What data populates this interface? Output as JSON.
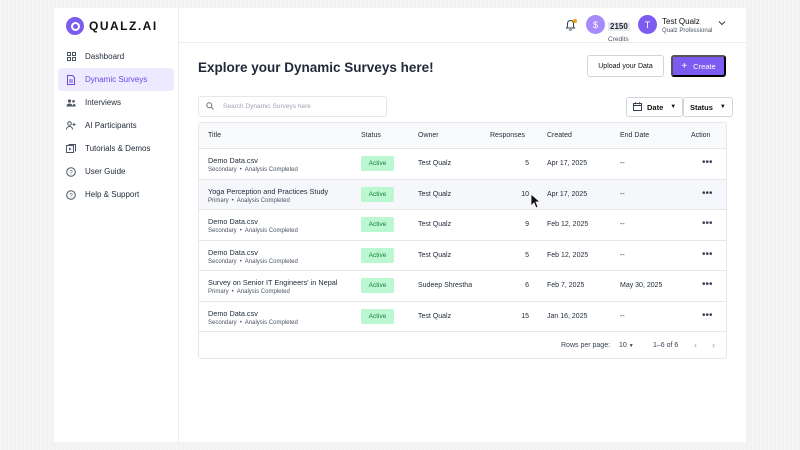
{
  "brand": {
    "name": "QUALZ.AI"
  },
  "sidebar": {
    "items": [
      {
        "label": "Dashboard",
        "icon": "grid-icon"
      },
      {
        "label": "Dynamic Surveys",
        "icon": "document-icon",
        "active": true
      },
      {
        "label": "Interviews",
        "icon": "users-icon"
      },
      {
        "label": "AI Participants",
        "icon": "user-plus-icon"
      },
      {
        "label": "Tutorials & Demos",
        "icon": "video-icon"
      },
      {
        "label": "User Guide",
        "icon": "help-circle-icon"
      },
      {
        "label": "Help & Support",
        "icon": "question-icon"
      }
    ]
  },
  "header": {
    "credits_symbol": "$",
    "credits_value": "2150",
    "credits_label": "Credits",
    "avatar_initial": "T",
    "user_name": "Test Qualz",
    "user_role": "Qualz Professional",
    "close_label": "×"
  },
  "main": {
    "title": "Explore your Dynamic Surveys here!",
    "upload_label": "Upload your Data",
    "create_label": "Create",
    "search_placeholder": "Search Dynamic Surveys here",
    "date_filter": "Date",
    "status_filter": "Status"
  },
  "table": {
    "columns": [
      "Title",
      "Status",
      "Owner",
      "Responses",
      "Created",
      "End Date",
      "Action"
    ],
    "rows": [
      {
        "title": "Demo Data.csv",
        "type": "Secondary",
        "analysis": "Analysis Completed",
        "status": "Active",
        "owner": "Test Qualz",
        "responses": "5",
        "created": "Apr 17, 2025",
        "end": "--"
      },
      {
        "title": "Yoga Perception and Practices Study",
        "type": "Primary",
        "analysis": "Analysis Completed",
        "status": "Active",
        "owner": "Test Qualz",
        "responses": "10",
        "created": "Apr 17, 2025",
        "end": "--"
      },
      {
        "title": "Demo Data.csv",
        "type": "Secondary",
        "analysis": "Analysis Completed",
        "status": "Active",
        "owner": "Test Qualz",
        "responses": "9",
        "created": "Feb 12, 2025",
        "end": "--"
      },
      {
        "title": "Demo Data.csv",
        "type": "Secondary",
        "analysis": "Analysis Completed",
        "status": "Active",
        "owner": "Test Qualz",
        "responses": "5",
        "created": "Feb 12, 2025",
        "end": "--"
      },
      {
        "title": "Survey on Senior IT Engineers' in Nepal",
        "type": "Primary",
        "analysis": "Analysis Completed",
        "status": "Active",
        "owner": "Sudeep Shrestha",
        "responses": "6",
        "created": "Feb 7, 2025",
        "end": "May 30, 2025"
      },
      {
        "title": "Demo Data.csv",
        "type": "Secondary",
        "analysis": "Analysis Completed",
        "status": "Active",
        "owner": "Test Qualz",
        "responses": "15",
        "created": "Jan 16, 2025",
        "end": "--"
      }
    ],
    "action_glyph": "•••",
    "rows_per_page_label": "Rows per page:",
    "rows_per_page": "10",
    "range": "1–6 of 6"
  }
}
